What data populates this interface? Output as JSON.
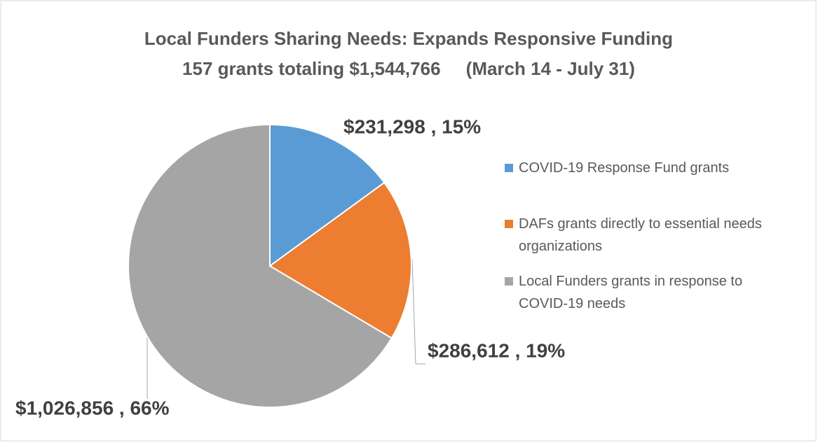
{
  "chart_data": {
    "type": "pie",
    "title": "Local Funders Sharing Needs: Expands Responsive Funding",
    "subtitle": "157 grants totaling $1,544,766     (March 14 - July 31)",
    "categories": [
      "COVID-19 Response Fund grants",
      "DAFs grants directly to essential needs organizations",
      "Local Funders grants in response to COVID-19 needs"
    ],
    "values": [
      231298,
      286612,
      1026856
    ],
    "value_labels": [
      "$231,298 , 15%",
      "$286,612 , 19%",
      "$1,026,856 , 66%"
    ],
    "colors": [
      "#5b9bd5",
      "#ed7d31",
      "#a5a5a5"
    ],
    "legend": "right"
  }
}
